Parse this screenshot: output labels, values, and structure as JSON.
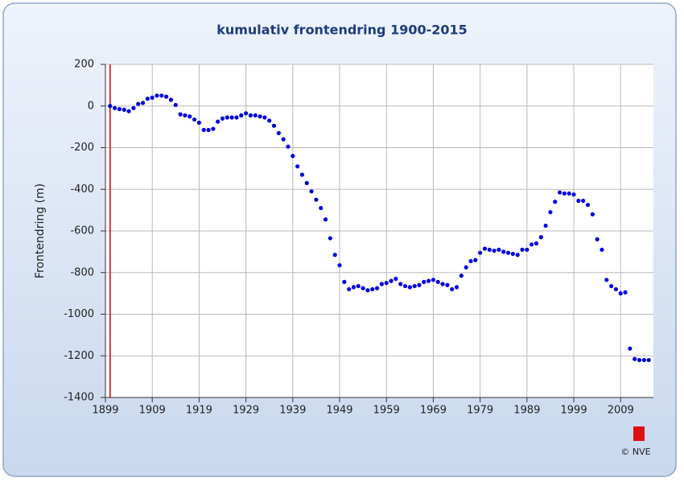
{
  "chart_data": {
    "type": "scatter",
    "title": "kumulativ frontendring 1900-2015",
    "y_label": "Frontendring (m)",
    "copyright": "© NVE",
    "x": [
      1900,
      1901,
      1902,
      1903,
      1904,
      1905,
      1906,
      1907,
      1908,
      1909,
      1910,
      1911,
      1912,
      1913,
      1914,
      1915,
      1916,
      1917,
      1918,
      1919,
      1920,
      1921,
      1922,
      1923,
      1924,
      1925,
      1926,
      1927,
      1928,
      1929,
      1930,
      1931,
      1932,
      1933,
      1934,
      1935,
      1936,
      1937,
      1938,
      1939,
      1940,
      1941,
      1942,
      1943,
      1944,
      1945,
      1946,
      1947,
      1948,
      1949,
      1950,
      1951,
      1952,
      1953,
      1954,
      1955,
      1956,
      1957,
      1958,
      1959,
      1960,
      1961,
      1962,
      1963,
      1964,
      1965,
      1966,
      1967,
      1968,
      1969,
      1970,
      1971,
      1972,
      1973,
      1974,
      1975,
      1976,
      1977,
      1978,
      1979,
      1980,
      1981,
      1982,
      1983,
      1984,
      1985,
      1986,
      1987,
      1988,
      1989,
      1990,
      1991,
      1992,
      1993,
      1994,
      1995,
      1996,
      1997,
      1998,
      1999,
      2000,
      2001,
      2002,
      2003,
      2004,
      2005,
      2006,
      2007,
      2008,
      2009,
      2010,
      2011,
      2012,
      2013,
      2014,
      2015
    ],
    "values": [
      0,
      -10,
      -15,
      -18,
      -25,
      -10,
      10,
      15,
      35,
      40,
      50,
      50,
      45,
      30,
      5,
      -40,
      -45,
      -50,
      -65,
      -80,
      -115,
      -115,
      -110,
      -75,
      -60,
      -55,
      -55,
      -55,
      -45,
      -35,
      -45,
      -45,
      -50,
      -55,
      -70,
      -95,
      -130,
      -160,
      -195,
      -240,
      -290,
      -330,
      -370,
      -410,
      -450,
      -490,
      -545,
      -635,
      -715,
      -765,
      -845,
      -880,
      -870,
      -865,
      -875,
      -885,
      -880,
      -875,
      -855,
      -850,
      -840,
      -830,
      -855,
      -865,
      -870,
      -865,
      -860,
      -845,
      -840,
      -835,
      -845,
      -855,
      -860,
      -880,
      -870,
      -815,
      -775,
      -745,
      -740,
      -705,
      -685,
      -690,
      -695,
      -690,
      -700,
      -705,
      -710,
      -715,
      -690,
      -690,
      -665,
      -660,
      -630,
      -575,
      -510,
      -460,
      -415,
      -420,
      -420,
      -425,
      -455,
      -455,
      -475,
      -520,
      -640,
      -690,
      -835,
      -865,
      -880,
      -900,
      -895,
      -1165,
      -1215,
      -1220,
      -1220,
      -1220
    ],
    "color": "#0000dd",
    "xlim": [
      1899,
      2016
    ],
    "ylim": [
      -1400,
      200
    ],
    "xticks": [
      1899,
      1909,
      1919,
      1929,
      1939,
      1949,
      1959,
      1969,
      1979,
      1989,
      1999,
      2009
    ],
    "yticks": [
      200,
      0,
      -200,
      -400,
      -600,
      -800,
      -1000,
      -1200,
      -1400
    ],
    "grid": true,
    "marker_line": {
      "x": 1900,
      "color": "#cc0000"
    }
  }
}
